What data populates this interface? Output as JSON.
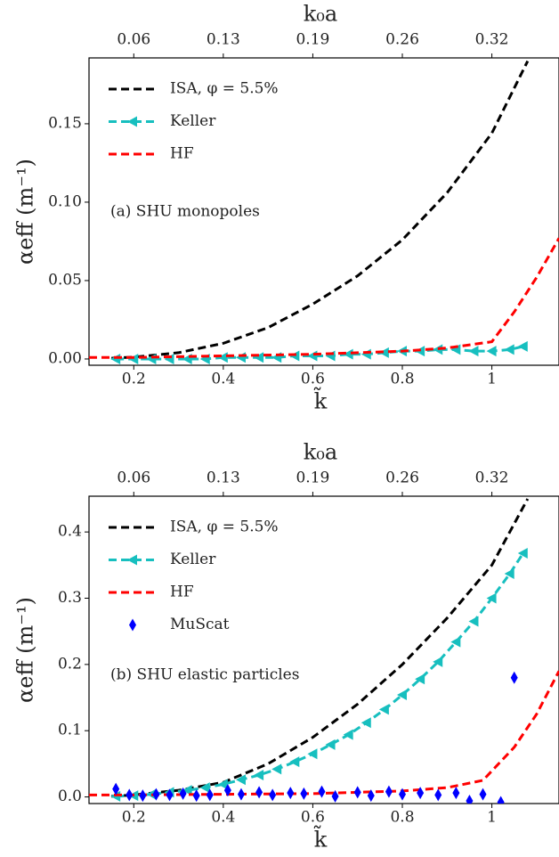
{
  "chart_data": [
    {
      "type": "line",
      "x2label": "k₀a",
      "xlabel": "k̃",
      "ylabel": "αeff (m⁻¹)",
      "annotation": "(a) SHU monopoles",
      "xlim": [
        0.1,
        1.15
      ],
      "ylim": [
        -0.004,
        0.192
      ],
      "xticks": [
        0.2,
        0.4,
        0.6,
        0.8,
        1.0
      ],
      "x2ticks": [
        {
          "value": 0.2,
          "label": "0.06"
        },
        {
          "value": 0.4,
          "label": "0.13"
        },
        {
          "value": 0.6,
          "label": "0.19"
        },
        {
          "value": 0.8,
          "label": "0.26"
        },
        {
          "value": 1.0,
          "label": "0.32"
        }
      ],
      "yticks": [
        {
          "value": 0,
          "label": "0.00"
        },
        {
          "value": 0.05,
          "label": "0.05"
        },
        {
          "value": 0.1,
          "label": "0.10"
        },
        {
          "value": 0.15,
          "label": "0.15"
        }
      ],
      "legend": "upper left",
      "series": [
        {
          "name": "ISA, φ = 5.5%",
          "color": "#000000",
          "style": "dashed",
          "x": [
            0.15,
            0.2,
            0.3,
            0.4,
            0.5,
            0.6,
            0.7,
            0.8,
            0.9,
            1.0,
            1.08
          ],
          "values": [
            0.0005,
            0.0012,
            0.004,
            0.01,
            0.02,
            0.035,
            0.053,
            0.076,
            0.106,
            0.144,
            0.19
          ]
        },
        {
          "name": "Keller",
          "color": "#17bfbf",
          "style": "dashed-triangle",
          "x": [
            0.16,
            0.2,
            0.24,
            0.28,
            0.32,
            0.36,
            0.4,
            0.44,
            0.48,
            0.52,
            0.56,
            0.6,
            0.64,
            0.68,
            0.72,
            0.76,
            0.8,
            0.84,
            0.88,
            0.92,
            0.96,
            1.0,
            1.04,
            1.07
          ],
          "values": [
            0,
            0,
            0,
            0,
            0,
            0,
            0.001,
            0.001,
            0.001,
            0.001,
            0.002,
            0.002,
            0.002,
            0.003,
            0.003,
            0.004,
            0.005,
            0.005,
            0.006,
            0.006,
            0.005,
            0.005,
            0.006,
            0.008
          ]
        },
        {
          "name": "HF",
          "color": "#ff0000",
          "style": "dashed",
          "x": [
            0.1,
            0.2,
            0.4,
            0.6,
            0.8,
            0.9,
            1.0,
            1.05,
            1.1,
            1.15
          ],
          "values": [
            0.001,
            0.001,
            0.002,
            0.003,
            0.005,
            0.007,
            0.011,
            0.03,
            0.052,
            0.077
          ]
        }
      ]
    },
    {
      "type": "line",
      "x2label": "k₀a",
      "xlabel": "k̃",
      "ylabel": "αeff (m⁻¹)",
      "annotation": "(b) SHU elastic particles",
      "xlim": [
        0.1,
        1.15
      ],
      "ylim": [
        -0.01,
        0.454
      ],
      "xticks": [
        0.2,
        0.4,
        0.6,
        0.8,
        1.0
      ],
      "x2ticks": [
        {
          "value": 0.2,
          "label": "0.06"
        },
        {
          "value": 0.4,
          "label": "0.13"
        },
        {
          "value": 0.6,
          "label": "0.19"
        },
        {
          "value": 0.8,
          "label": "0.26"
        },
        {
          "value": 1.0,
          "label": "0.32"
        }
      ],
      "yticks": [
        {
          "value": 0,
          "label": "0.0"
        },
        0.1,
        0.2,
        0.3,
        0.4
      ],
      "legend": "upper left",
      "series": [
        {
          "name": "ISA, φ = 5.5%",
          "color": "#000000",
          "style": "dashed",
          "x": [
            0.15,
            0.2,
            0.3,
            0.4,
            0.5,
            0.6,
            0.7,
            0.8,
            0.9,
            1.0,
            1.08
          ],
          "values": [
            0.001,
            0.003,
            0.01,
            0.022,
            0.05,
            0.09,
            0.14,
            0.2,
            0.27,
            0.35,
            0.45
          ]
        },
        {
          "name": "Keller",
          "color": "#17bfbf",
          "style": "dashed-triangle",
          "x": [
            0.16,
            0.2,
            0.24,
            0.28,
            0.32,
            0.36,
            0.4,
            0.44,
            0.48,
            0.52,
            0.56,
            0.6,
            0.64,
            0.68,
            0.72,
            0.76,
            0.8,
            0.84,
            0.88,
            0.92,
            0.96,
            1.0,
            1.04,
            1.07
          ],
          "values": [
            0.001,
            0.002,
            0.004,
            0.007,
            0.01,
            0.014,
            0.019,
            0.026,
            0.033,
            0.042,
            0.053,
            0.065,
            0.079,
            0.094,
            0.112,
            0.132,
            0.154,
            0.178,
            0.204,
            0.234,
            0.265,
            0.3,
            0.337,
            0.368
          ]
        },
        {
          "name": "HF",
          "color": "#ff0000",
          "style": "dashed",
          "x": [
            0.1,
            0.2,
            0.4,
            0.6,
            0.8,
            0.9,
            0.98,
            1.05,
            1.1,
            1.15
          ],
          "values": [
            0.003,
            0.003,
            0.004,
            0.005,
            0.009,
            0.014,
            0.025,
            0.075,
            0.125,
            0.19
          ]
        },
        {
          "name": "MuScat",
          "color": "#0000ff",
          "style": "diamond",
          "x": [
            0.16,
            0.19,
            0.22,
            0.25,
            0.28,
            0.31,
            0.34,
            0.37,
            0.41,
            0.44,
            0.48,
            0.51,
            0.55,
            0.58,
            0.62,
            0.65,
            0.7,
            0.73,
            0.77,
            0.8,
            0.84,
            0.88,
            0.92,
            0.95,
            0.98,
            1.02,
            1.05
          ],
          "values": [
            0.012,
            0.003,
            0.002,
            0.004,
            0.003,
            0.005,
            0.002,
            0.003,
            0.01,
            0.004,
            0.007,
            0.003,
            0.006,
            0.005,
            0.008,
            0.001,
            0.007,
            0.002,
            0.008,
            0.004,
            0.006,
            0.003,
            0.006,
            -0.006,
            0.004,
            -0.008,
            0.18
          ]
        }
      ]
    }
  ]
}
